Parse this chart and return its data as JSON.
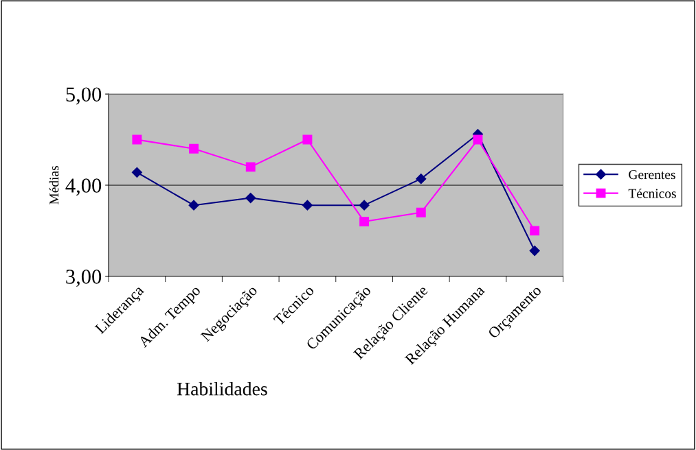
{
  "chart_data": {
    "type": "line",
    "xlabel": "Habilidades",
    "ylabel": "Médias",
    "categories": [
      "Liderança",
      "Adm. Tempo",
      "Negociação",
      "Técnico",
      "Comunicação",
      "Relação Cliente",
      "Relação Humana",
      "Orçamento"
    ],
    "series": [
      {
        "name": "Gerentes",
        "color": "#000080",
        "marker": "diamond",
        "values": [
          4.14,
          3.78,
          3.86,
          3.78,
          3.78,
          4.07,
          4.56,
          3.28
        ]
      },
      {
        "name": "Técnicos",
        "color": "#ff00ff",
        "marker": "square",
        "values": [
          4.5,
          4.4,
          4.2,
          4.5,
          3.6,
          3.7,
          4.5,
          3.5
        ]
      }
    ],
    "ylim": [
      3,
      5
    ],
    "yticks": [
      {
        "value": 3,
        "label": "3,00"
      },
      {
        "value": 4,
        "label": "4,00"
      },
      {
        "value": 5,
        "label": "5,00"
      }
    ],
    "grid": "y",
    "legend": "right",
    "line_style": "solid"
  }
}
